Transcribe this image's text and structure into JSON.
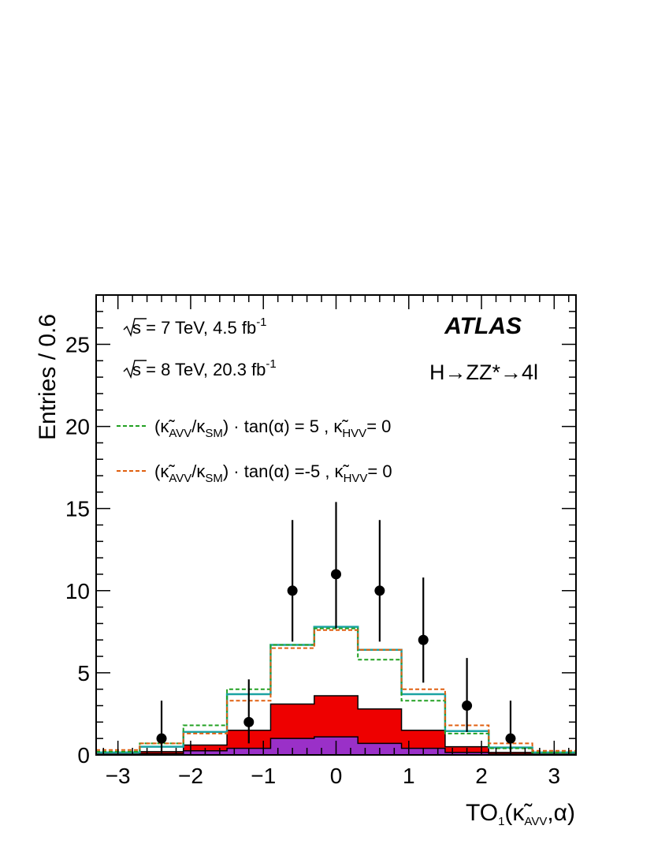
{
  "chart_data": {
    "type": "histogram",
    "xlabel": "TO",
    "xlabel_sub": "1",
    "xlabel_rest": "(κ̃",
    "xlabel_sub2": "AVV",
    "xlabel_end": ",α)",
    "ylabel": "Entries / 0.6",
    "xlim": [
      -3.3,
      3.3
    ],
    "ylim": [
      0,
      28
    ],
    "xticks": [
      -3,
      -2,
      -1,
      0,
      1,
      2,
      3
    ],
    "xtick_labels": [
      "−3",
      "−2",
      "−1",
      "0",
      "1",
      "2",
      "3"
    ],
    "yticks": [
      0,
      5,
      10,
      15,
      20,
      25
    ],
    "ytick_labels": [
      "0",
      "5",
      "10",
      "15",
      "20",
      "25"
    ],
    "bin_edges": [
      -3.3,
      -2.7,
      -2.1,
      -1.5,
      -0.9,
      -0.3,
      0.3,
      0.9,
      1.5,
      2.1,
      2.7,
      3.3
    ],
    "series": [
      {
        "role": "total_expected",
        "color": "#1aa3a3",
        "values": [
          0.15,
          0.5,
          1.4,
          3.7,
          6.7,
          7.8,
          6.4,
          3.7,
          1.45,
          0.45,
          0.15
        ]
      },
      {
        "role": "legend_1",
        "color": "#22a022",
        "values": [
          0.2,
          0.7,
          1.8,
          4.0,
          6.7,
          7.7,
          5.8,
          3.3,
          1.3,
          0.4,
          0.15
        ]
      },
      {
        "role": "legend_2",
        "color": "#e06010",
        "values": [
          0.3,
          0.7,
          1.3,
          3.3,
          6.5,
          7.6,
          6.4,
          4.0,
          1.8,
          0.7,
          0.25
        ]
      },
      {
        "role": "background_1",
        "color": "#ee0000",
        "values": [
          0.05,
          0.2,
          0.6,
          1.5,
          3.1,
          3.6,
          2.8,
          1.5,
          0.5,
          0.15,
          0.05
        ]
      },
      {
        "role": "background_2",
        "color": "#9a30c8",
        "values": [
          0.02,
          0.08,
          0.25,
          0.4,
          1.0,
          1.1,
          0.7,
          0.4,
          0.15,
          0.05,
          0.02
        ]
      }
    ],
    "data_points": {
      "x": [
        -2.4,
        -1.2,
        -0.6,
        0.0,
        0.6,
        1.2,
        1.8,
        2.4
      ],
      "y": [
        1,
        2,
        10,
        11,
        10,
        7,
        3,
        1
      ],
      "err_up": [
        2.3,
        2.6,
        4.3,
        4.4,
        4.3,
        3.8,
        2.9,
        2.3
      ],
      "err_down": [
        0.8,
        1.3,
        3.1,
        3.3,
        3.1,
        2.6,
        1.6,
        0.8
      ]
    },
    "legend_position": "upper-left"
  },
  "text": {
    "energy1_pre": "s = 7 TeV, 4.5 fb",
    "energy1_sup": "-1",
    "energy2_pre": "s = 8 TeV, 20.3 fb",
    "energy2_sup": "-1",
    "atlas": "ATLAS",
    "process": "H→ZZ*→4l",
    "legend1": {
      "open": "(κ̃",
      "sub1": "AVV",
      "mid": "/κ",
      "sub2": "SM",
      "mid2": ") · tan(α) = 5 , κ̃",
      "sub3": "HVV",
      "end": "= 0"
    },
    "legend2": {
      "open": "(κ̃",
      "sub1": "AVV",
      "mid": "/κ",
      "sub2": "SM",
      "mid2": ") · tan(α) =-5 , κ̃",
      "sub3": "HVV",
      "end": "= 0"
    }
  }
}
